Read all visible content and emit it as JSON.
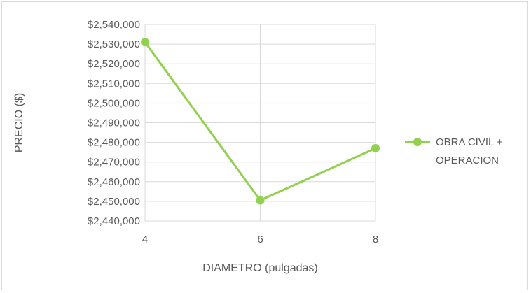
{
  "chart_data": {
    "type": "line",
    "x": [
      4,
      6,
      8
    ],
    "x_tick_labels": [
      "4",
      "6",
      "8"
    ],
    "xlim": [
      4,
      8
    ],
    "ylim": [
      2440000,
      2540000
    ],
    "y_ticks": [
      2440000,
      2450000,
      2460000,
      2470000,
      2480000,
      2490000,
      2500000,
      2510000,
      2520000,
      2530000,
      2540000
    ],
    "y_tick_labels": [
      "$2,440,000",
      "$2,450,000",
      "$2,460,000",
      "$2,470,000",
      "$2,480,000",
      "$2,490,000",
      "$2,500,000",
      "$2,510,000",
      "$2,520,000",
      "$2,530,000",
      "$2,540,000"
    ],
    "xlabel": "DIAMETRO (pulgadas)",
    "ylabel": "PRECIO ($)",
    "grid": true,
    "legend_position": "right",
    "series": [
      {
        "name_lines": [
          "OBRA CIVIL +",
          "OPERACION"
        ],
        "values": [
          2531000,
          2450500,
          2477000
        ],
        "color": "#92d050"
      }
    ]
  }
}
